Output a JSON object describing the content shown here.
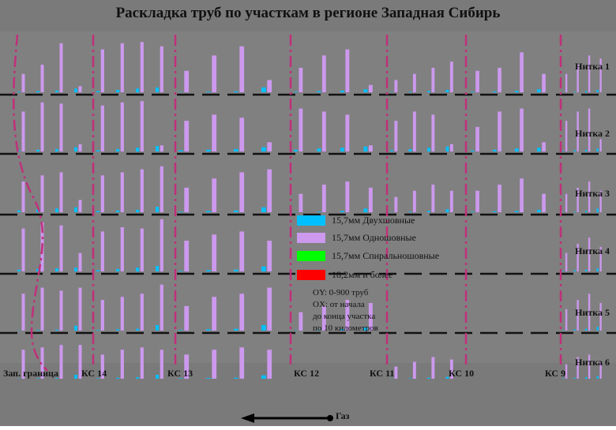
{
  "title": "Раскладка труб по участкам в регионе Западная Сибирь",
  "threads": [
    "Нитка 1",
    "Нитка 2",
    "Нитка 3",
    "Нитка 4",
    "Нитка 5",
    "Нитка 6"
  ],
  "stations": [
    "Зап. граница",
    "КС 14",
    "КС 13",
    "КС 12",
    "КС 11",
    "КС 10",
    "КС 9"
  ],
  "legend": [
    {
      "label": "15,7мм Двухшовные",
      "color": "#00bfff"
    },
    {
      "label": "15,7мм Одношовные",
      "color": "#cc99ee"
    },
    {
      "label": "15,7мм Спиральношовные",
      "color": "#00ff00"
    },
    {
      "label": "18,2мм и более",
      "color": "#ff0000"
    }
  ],
  "note": {
    "oy": "OY: 0-900 труб",
    "ox1": "OX: от начала",
    "ox2": "до конца участка",
    "ox3": "по 10 километров"
  },
  "gas_label": "Газ",
  "colors": {
    "background": "#7a7a7a",
    "dividers": "#111111",
    "section_lines": "#c0307a"
  },
  "chart_data": {
    "type": "bar",
    "title": "Раскладка труб по участкам в регионе Западная Сибирь",
    "ylabel": "OY: 0-900 труб",
    "xlabel": "OX: от начала до конца участка по 10 километров",
    "ylim": [
      0,
      900
    ],
    "series_names": [
      "15,7мм Двухшовные",
      "15,7мм Одношовные",
      "15,7мм Спиральношовные",
      "18,2мм и более"
    ],
    "threads": [
      {
        "name": "Нитка 1",
        "groups": [
          [
            [
              10,
              300
            ],
            [
              20,
              450
            ],
            [
              30,
              800
            ],
            [
              60,
              100
            ]
          ],
          [
            [
              20,
              700
            ],
            [
              40,
              800
            ],
            [
              60,
              820
            ],
            [
              80,
              750
            ]
          ],
          [
            [
              5,
              350
            ],
            [
              10,
              600
            ],
            [
              15,
              750
            ],
            [
              80,
              200
            ]
          ],
          [
            [
              10,
              400
            ],
            [
              20,
              600
            ],
            [
              30,
              700
            ],
            [
              50,
              120
            ]
          ],
          [
            [
              5,
              200
            ],
            [
              10,
              300
            ],
            [
              20,
              400
            ],
            [
              40,
              500
            ]
          ],
          [
            [
              10,
              350
            ],
            [
              15,
              400
            ],
            [
              25,
              650
            ],
            [
              50,
              300
            ]
          ],
          [
            [
              5,
              300
            ],
            [
              10,
              450
            ],
            [
              20,
              600
            ],
            [
              40,
              550
            ]
          ]
        ]
      },
      {
        "name": "Нитка 2",
        "groups": [
          [
            [
              15,
              650
            ],
            [
              30,
              800
            ],
            [
              40,
              780
            ],
            [
              70,
              120
            ]
          ],
          [
            [
              20,
              750
            ],
            [
              40,
              800
            ],
            [
              60,
              820
            ],
            [
              90,
              100
            ]
          ],
          [
            [
              20,
              500
            ],
            [
              30,
              600
            ],
            [
              40,
              550
            ],
            [
              70,
              150
            ]
          ],
          [
            [
              30,
              700
            ],
            [
              50,
              650
            ],
            [
              60,
              600
            ],
            [
              80,
              100
            ]
          ],
          [
            [
              20,
              500
            ],
            [
              40,
              650
            ],
            [
              60,
              600
            ],
            [
              80,
              120
            ]
          ],
          [
            [
              15,
              400
            ],
            [
              30,
              650
            ],
            [
              50,
              700
            ],
            [
              60,
              150
            ]
          ],
          [
            [
              10,
              500
            ],
            [
              20,
              650
            ],
            [
              30,
              700
            ],
            [
              50,
              200
            ]
          ]
        ]
      },
      {
        "name": "Нитка 3",
        "groups": [
          [
            [
              30,
              500
            ],
            [
              50,
              600
            ],
            [
              60,
              650
            ],
            [
              80,
              200
            ]
          ],
          [
            [
              20,
              600
            ],
            [
              30,
              650
            ],
            [
              40,
              700
            ],
            [
              90,
              750
            ]
          ],
          [
            [
              10,
              400
            ],
            [
              20,
              550
            ],
            [
              30,
              650
            ],
            [
              80,
              700
            ]
          ],
          [
            [
              5,
              300
            ],
            [
              10,
              450
            ],
            [
              20,
              500
            ],
            [
              60,
              400
            ]
          ],
          [
            [
              5,
              250
            ],
            [
              10,
              350
            ],
            [
              20,
              450
            ],
            [
              50,
              350
            ]
          ],
          [
            [
              10,
              350
            ],
            [
              15,
              450
            ],
            [
              20,
              550
            ],
            [
              40,
              300
            ]
          ],
          [
            [
              5,
              300
            ],
            [
              10,
              400
            ],
            [
              20,
              500
            ],
            [
              60,
              350
            ]
          ]
        ]
      },
      {
        "name": "Нитка 4",
        "groups": [
          [
            [
              30,
              700
            ],
            [
              40,
              800
            ],
            [
              50,
              750
            ],
            [
              60,
              300
            ]
          ],
          [
            [
              20,
              650
            ],
            [
              40,
              720
            ],
            [
              60,
              700
            ],
            [
              90,
              850
            ]
          ],
          [
            [
              10,
              500
            ],
            [
              20,
              600
            ],
            [
              30,
              650
            ],
            [
              80,
              500
            ]
          ],
          [
            [
              0,
              0
            ],
            [
              0,
              0
            ],
            [
              0,
              0
            ],
            [
              0,
              0
            ]
          ],
          [
            [
              0,
              0
            ],
            [
              0,
              0
            ],
            [
              0,
              0
            ],
            [
              0,
              0
            ]
          ],
          [
            [
              0,
              0
            ],
            [
              0,
              0
            ],
            [
              0,
              0
            ],
            [
              0,
              0
            ]
          ],
          [
            [
              10,
              300
            ],
            [
              20,
              450
            ],
            [
              30,
              550
            ],
            [
              50,
              400
            ]
          ]
        ]
      },
      {
        "name": "Нитка 5",
        "groups": [
          [
            [
              5,
              600
            ],
            [
              10,
              700
            ],
            [
              15,
              650
            ],
            [
              80,
              700
            ]
          ],
          [
            [
              10,
              500
            ],
            [
              20,
              550
            ],
            [
              30,
              600
            ],
            [
              90,
              750
            ]
          ],
          [
            [
              10,
              400
            ],
            [
              20,
              550
            ],
            [
              30,
              600
            ],
            [
              90,
              700
            ]
          ],
          [
            [
              5,
              300
            ],
            [
              10,
              400
            ],
            [
              20,
              500
            ],
            [
              50,
              450
            ]
          ],
          [
            [
              0,
              0
            ],
            [
              0,
              0
            ],
            [
              0,
              0
            ],
            [
              0,
              0
            ]
          ],
          [
            [
              0,
              0
            ],
            [
              0,
              0
            ],
            [
              0,
              0
            ],
            [
              0,
              0
            ]
          ],
          [
            [
              10,
              350
            ],
            [
              20,
              500
            ],
            [
              30,
              600
            ],
            [
              60,
              450
            ]
          ]
        ]
      },
      {
        "name": "Нитка 6",
        "groups": [
          [
            [
              5,
              600
            ],
            [
              10,
              650
            ],
            [
              15,
              700
            ],
            [
              80,
              700
            ]
          ],
          [
            [
              10,
              500
            ],
            [
              20,
              600
            ],
            [
              30,
              650
            ],
            [
              80,
              600
            ]
          ],
          [
            [
              10,
              500
            ],
            [
              15,
              600
            ],
            [
              20,
              650
            ],
            [
              70,
              600
            ]
          ],
          [
            [
              0,
              0
            ],
            [
              0,
              0
            ],
            [
              0,
              0
            ],
            [
              0,
              0
            ]
          ],
          [
            [
              5,
              250
            ],
            [
              10,
              350
            ],
            [
              20,
              450
            ],
            [
              40,
              400
            ]
          ],
          [
            [
              0,
              0
            ],
            [
              0,
              0
            ],
            [
              0,
              0
            ],
            [
              0,
              0
            ]
          ],
          [
            [
              10,
              300
            ],
            [
              20,
              450
            ],
            [
              30,
              500
            ],
            [
              50,
              350
            ]
          ]
        ]
      }
    ]
  }
}
